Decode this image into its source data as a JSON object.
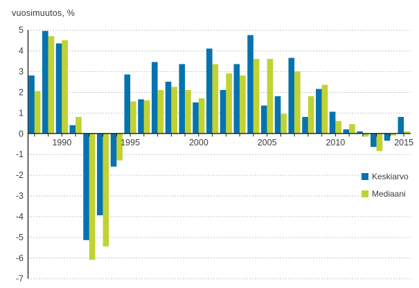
{
  "header": {
    "title": "vuosimuutos, %"
  },
  "legend": {
    "items": [
      {
        "label": "Keskiarvo",
        "color": "#0673ae"
      },
      {
        "label": "Mediaani",
        "color": "#c1d233"
      }
    ]
  },
  "chart_data": {
    "type": "bar",
    "title": "vuosimuutos, %",
    "categories": [
      1988,
      1989,
      1990,
      1991,
      1992,
      1993,
      1994,
      1995,
      1996,
      1997,
      1998,
      1999,
      2000,
      2001,
      2002,
      2003,
      2004,
      2005,
      2006,
      2007,
      2008,
      2009,
      2010,
      2011,
      2012,
      2013,
      2014,
      2015
    ],
    "series": [
      {
        "name": "Keskiarvo",
        "color": "#0673ae",
        "values": [
          2.8,
          4.95,
          4.35,
          0.4,
          -5.15,
          -3.95,
          -1.6,
          2.85,
          1.65,
          3.45,
          2.5,
          3.35,
          1.5,
          4.1,
          2.1,
          3.35,
          4.75,
          1.35,
          1.8,
          3.65,
          0.8,
          2.15,
          1.05,
          0.2,
          0.1,
          -0.65,
          -0.35,
          0.8
        ]
      },
      {
        "name": "Mediaani",
        "color": "#c1d233",
        "values": [
          2.05,
          4.7,
          4.5,
          0.8,
          -6.1,
          -5.45,
          -1.3,
          1.55,
          1.6,
          2.1,
          2.25,
          2.1,
          1.7,
          3.35,
          2.9,
          2.8,
          3.6,
          3.6,
          0.95,
          3.0,
          1.8,
          2.35,
          0.6,
          0.45,
          -0.15,
          -0.85,
          -0.1,
          0.1
        ]
      }
    ],
    "ylim": [
      -7,
      5
    ],
    "y_ticks": [
      5,
      4,
      3,
      2,
      1,
      0,
      -1,
      -2,
      -3,
      -4,
      -5,
      -6,
      -7
    ],
    "x_labeled_years": [
      1990,
      1995,
      2000,
      2005,
      2010,
      2015
    ],
    "grid": "horizontal-dashed",
    "legend_position": "right-middle"
  },
  "colors": {
    "keskiarvo": "#0673ae",
    "mediaani": "#c1d233",
    "gridline": "#c6c6c6",
    "axis": "#1a1a1a",
    "text": "#3c3c3c",
    "background": "#ffffff"
  }
}
